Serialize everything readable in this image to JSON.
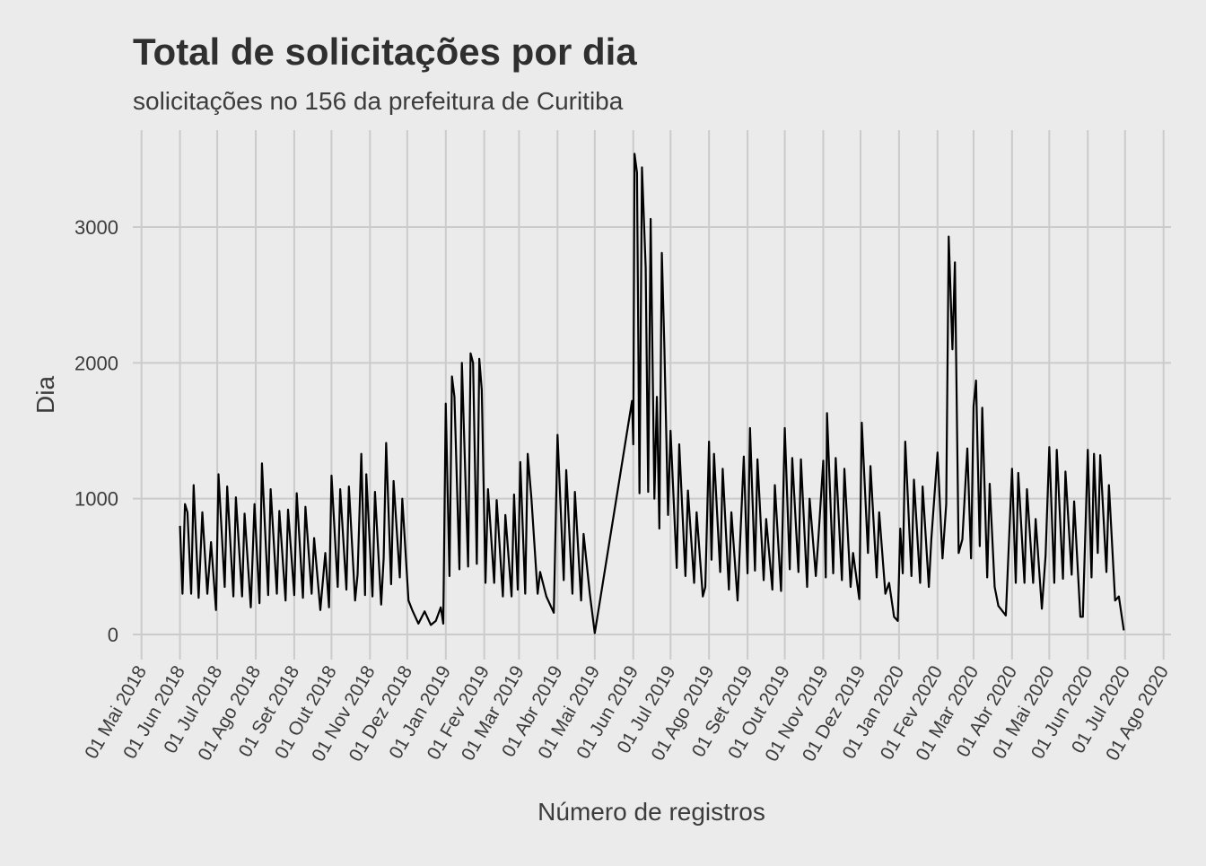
{
  "chart_data": {
    "type": "line",
    "title": "Total de solicitações por dia",
    "subtitle": "solicitações no 156 da prefeitura de Curitiba",
    "x_label": "Número de registros",
    "y_label": "Dia",
    "color": "#000000",
    "grid": true,
    "xlim": [
      "2018-04-24",
      "2020-08-07"
    ],
    "ylim": [
      -185,
      3714
    ],
    "yticks": [
      0,
      1000,
      2000,
      3000
    ],
    "xticks": [
      {
        "value": "2018-05-01",
        "label": "01 Mai 2018"
      },
      {
        "value": "2018-06-01",
        "label": "01 Jun 2018"
      },
      {
        "value": "2018-07-01",
        "label": "01 Jul 2018"
      },
      {
        "value": "2018-08-01",
        "label": "01 Ago 2018"
      },
      {
        "value": "2018-09-01",
        "label": "01 Set 2018"
      },
      {
        "value": "2018-10-01",
        "label": "01 Out 2018"
      },
      {
        "value": "2018-11-01",
        "label": "01 Nov 2018"
      },
      {
        "value": "2018-12-01",
        "label": "01 Dez 2018"
      },
      {
        "value": "2019-01-01",
        "label": "01 Jan 2019"
      },
      {
        "value": "2019-02-01",
        "label": "01 Fev 2019"
      },
      {
        "value": "2019-03-01",
        "label": "01 Mar 2019"
      },
      {
        "value": "2019-04-01",
        "label": "01 Abr 2019"
      },
      {
        "value": "2019-05-01",
        "label": "01 Mai 2019"
      },
      {
        "value": "2019-06-01",
        "label": "01 Jun 2019"
      },
      {
        "value": "2019-07-01",
        "label": "01 Jul 2019"
      },
      {
        "value": "2019-08-01",
        "label": "01 Ago 2019"
      },
      {
        "value": "2019-09-01",
        "label": "01 Set 2019"
      },
      {
        "value": "2019-10-01",
        "label": "01 Out 2019"
      },
      {
        "value": "2019-11-01",
        "label": "01 Nov 2019"
      },
      {
        "value": "2019-12-01",
        "label": "01 Dez 2019"
      },
      {
        "value": "2020-01-01",
        "label": "01 Jan 2020"
      },
      {
        "value": "2020-02-01",
        "label": "01 Fev 2020"
      },
      {
        "value": "2020-03-01",
        "label": "01 Mar 2020"
      },
      {
        "value": "2020-04-01",
        "label": "01 Abr 2020"
      },
      {
        "value": "2020-05-01",
        "label": "01 Mai 2020"
      },
      {
        "value": "2020-06-01",
        "label": "01 Jun 2020"
      },
      {
        "value": "2020-07-01",
        "label": "01 Jul 2020"
      },
      {
        "value": "2020-08-01",
        "label": "01 Ago 2020"
      }
    ],
    "x": [
      "2018-06-01",
      "2018-06-03",
      "2018-06-05",
      "2018-06-07",
      "2018-06-10",
      "2018-06-12",
      "2018-06-16",
      "2018-06-19",
      "2018-06-23",
      "2018-06-26",
      "2018-06-30",
      "2018-07-02",
      "2018-07-07",
      "2018-07-09",
      "2018-07-14",
      "2018-07-16",
      "2018-07-21",
      "2018-07-23",
      "2018-07-28",
      "2018-07-31",
      "2018-08-04",
      "2018-08-06",
      "2018-08-11",
      "2018-08-13",
      "2018-08-18",
      "2018-08-20",
      "2018-08-25",
      "2018-08-27",
      "2018-09-01",
      "2018-09-03",
      "2018-09-08",
      "2018-09-10",
      "2018-09-15",
      "2018-09-17",
      "2018-09-22",
      "2018-09-26",
      "2018-09-29",
      "2018-10-01",
      "2018-10-06",
      "2018-10-08",
      "2018-10-13",
      "2018-10-15",
      "2018-10-20",
      "2018-10-22",
      "2018-10-25",
      "2018-10-28",
      "2018-10-29",
      "2018-11-03",
      "2018-11-05",
      "2018-11-10",
      "2018-11-12",
      "2018-11-14",
      "2018-11-18",
      "2018-11-20",
      "2018-11-25",
      "2018-11-27",
      "2018-12-02",
      "2018-12-05",
      "2018-12-10",
      "2018-12-15",
      "2018-12-20",
      "2018-12-24",
      "2018-12-28",
      "2018-12-30",
      "2019-01-01",
      "2019-01-04",
      "2019-01-06",
      "2019-01-08",
      "2019-01-12",
      "2019-01-14",
      "2019-01-19",
      "2019-01-21",
      "2019-01-23",
      "2019-01-26",
      "2019-01-28",
      "2019-01-30",
      "2019-02-02",
      "2019-02-04",
      "2019-02-09",
      "2019-02-11",
      "2019-02-16",
      "2019-02-18",
      "2019-02-23",
      "2019-02-25",
      "2019-02-28",
      "2019-03-02",
      "2019-03-06",
      "2019-03-08",
      "2019-03-11",
      "2019-03-16",
      "2019-03-18",
      "2019-03-23",
      "2019-03-29",
      "2019-04-01",
      "2019-04-06",
      "2019-04-08",
      "2019-04-13",
      "2019-04-15",
      "2019-04-20",
      "2019-04-22",
      "2019-04-27",
      "2019-05-01",
      "2019-05-31",
      "2019-06-01",
      "2019-06-02",
      "2019-06-04",
      "2019-06-06",
      "2019-06-08",
      "2019-06-11",
      "2019-06-13",
      "2019-06-15",
      "2019-06-18",
      "2019-06-20",
      "2019-06-22",
      "2019-06-24",
      "2019-06-26",
      "2019-06-29",
      "2019-07-01",
      "2019-07-06",
      "2019-07-08",
      "2019-07-13",
      "2019-07-15",
      "2019-07-20",
      "2019-07-22",
      "2019-07-27",
      "2019-07-29",
      "2019-08-01",
      "2019-08-03",
      "2019-08-05",
      "2019-08-10",
      "2019-08-12",
      "2019-08-17",
      "2019-08-19",
      "2019-08-24",
      "2019-08-29",
      "2019-09-01",
      "2019-09-03",
      "2019-09-07",
      "2019-09-09",
      "2019-09-14",
      "2019-09-16",
      "2019-09-21",
      "2019-09-23",
      "2019-09-28",
      "2019-10-01",
      "2019-10-05",
      "2019-10-07",
      "2019-10-12",
      "2019-10-14",
      "2019-10-19",
      "2019-10-21",
      "2019-10-26",
      "2019-10-28",
      "2019-11-01",
      "2019-11-03",
      "2019-11-04",
      "2019-11-09",
      "2019-11-11",
      "2019-11-16",
      "2019-11-18",
      "2019-11-23",
      "2019-11-25",
      "2019-11-30",
      "2019-12-02",
      "2019-12-07",
      "2019-12-09",
      "2019-12-14",
      "2019-12-16",
      "2019-12-21",
      "2019-12-24",
      "2019-12-28",
      "2019-12-31",
      "2020-01-02",
      "2020-01-04",
      "2020-01-06",
      "2020-01-11",
      "2020-01-13",
      "2020-01-18",
      "2020-01-20",
      "2020-01-25",
      "2020-01-27",
      "2020-02-01",
      "2020-02-05",
      "2020-02-08",
      "2020-02-10",
      "2020-02-13",
      "2020-02-15",
      "2020-02-18",
      "2020-02-21",
      "2020-02-25",
      "2020-02-28",
      "2020-03-01",
      "2020-03-03",
      "2020-03-06",
      "2020-03-08",
      "2020-03-12",
      "2020-03-14",
      "2020-03-18",
      "2020-03-21",
      "2020-03-27",
      "2020-04-01",
      "2020-04-04",
      "2020-04-06",
      "2020-04-11",
      "2020-04-13",
      "2020-04-18",
      "2020-04-20",
      "2020-04-25",
      "2020-04-28",
      "2020-05-01",
      "2020-05-05",
      "2020-05-07",
      "2020-05-12",
      "2020-05-14",
      "2020-05-19",
      "2020-05-21",
      "2020-05-26",
      "2020-05-28",
      "2020-06-01",
      "2020-06-04",
      "2020-06-06",
      "2020-06-09",
      "2020-06-11",
      "2020-06-16",
      "2020-06-18",
      "2020-06-23",
      "2020-06-26",
      "2020-06-30"
    ],
    "values": [
      800,
      300,
      960,
      900,
      300,
      1100,
      270,
      900,
      300,
      680,
      180,
      1180,
      350,
      1090,
      280,
      1010,
      280,
      890,
      200,
      960,
      230,
      1260,
      290,
      1070,
      300,
      910,
      250,
      920,
      290,
      1040,
      270,
      940,
      300,
      710,
      180,
      600,
      200,
      1170,
      350,
      1070,
      330,
      1090,
      250,
      440,
      1330,
      290,
      1180,
      280,
      1050,
      220,
      560,
      1410,
      370,
      1130,
      420,
      1000,
      250,
      180,
      80,
      170,
      70,
      100,
      200,
      80,
      1700,
      430,
      1900,
      1750,
      480,
      2000,
      500,
      2070,
      2000,
      520,
      2030,
      1800,
      380,
      1070,
      380,
      990,
      280,
      880,
      280,
      1030,
      330,
      1270,
      300,
      1330,
      1000,
      300,
      460,
      280,
      160,
      1470,
      400,
      1210,
      300,
      1050,
      250,
      740,
      300,
      10,
      1720,
      1400,
      3540,
      3400,
      1040,
      3440,
      2700,
      1050,
      3060,
      1000,
      1750,
      780,
      2810,
      2130,
      880,
      1500,
      490,
      1400,
      430,
      1060,
      380,
      900,
      280,
      350,
      1420,
      550,
      1330,
      460,
      1220,
      330,
      900,
      250,
      1310,
      450,
      1520,
      470,
      1290,
      400,
      850,
      330,
      1100,
      320,
      1520,
      480,
      1300,
      460,
      1290,
      350,
      1000,
      430,
      700,
      1280,
      420,
      1630,
      450,
      1300,
      400,
      1220,
      350,
      600,
      260,
      1560,
      600,
      1240,
      420,
      900,
      300,
      380,
      130,
      100,
      780,
      450,
      1420,
      430,
      1140,
      380,
      1090,
      350,
      700,
      1340,
      560,
      960,
      2930,
      2100,
      2740,
      600,
      700,
      1370,
      560,
      1680,
      1870,
      650,
      1670,
      420,
      1110,
      350,
      210,
      140,
      1220,
      380,
      1190,
      380,
      1070,
      380,
      850,
      190,
      580,
      1380,
      380,
      1360,
      410,
      1200,
      440,
      980,
      130,
      130,
      1360,
      420,
      1330,
      600,
      1320,
      460,
      1100,
      250,
      280,
      30
    ]
  }
}
